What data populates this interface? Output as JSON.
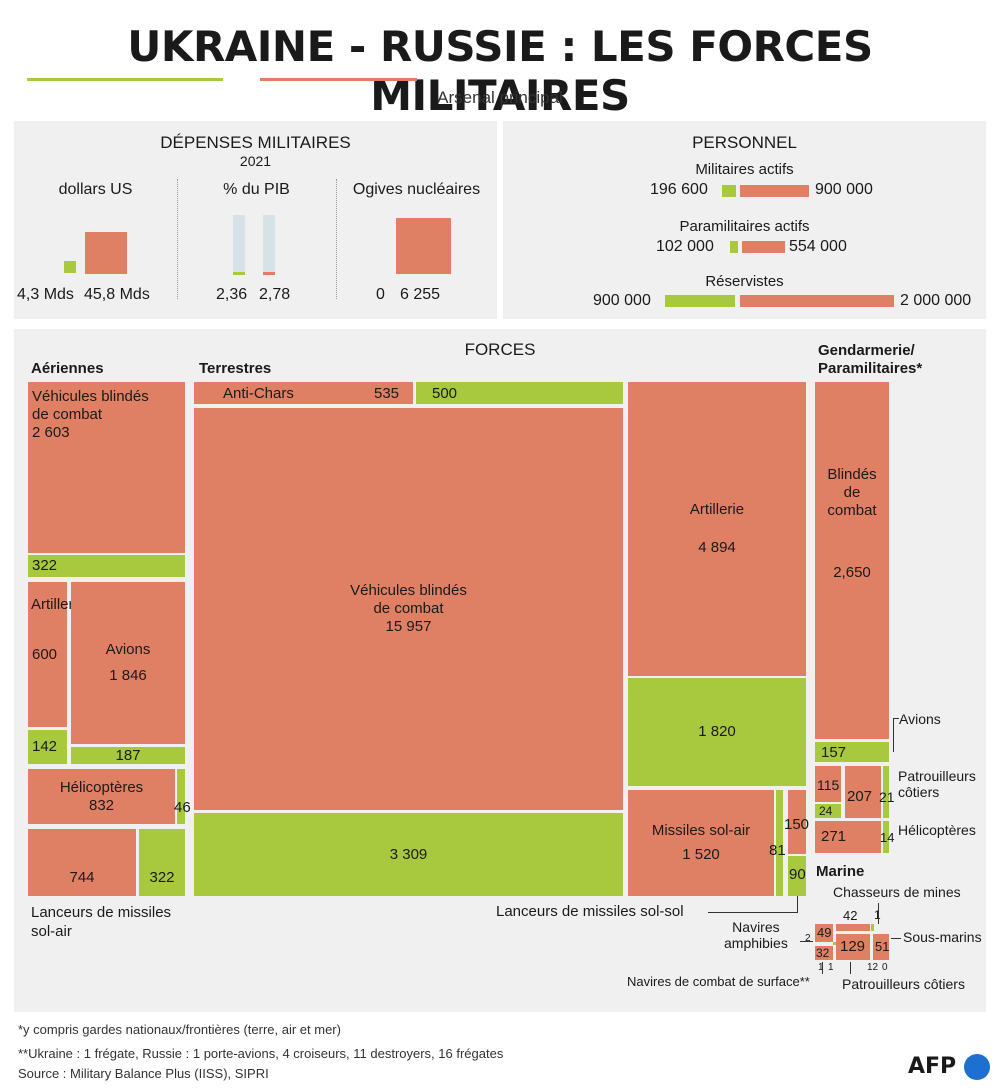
{
  "header": {
    "title_ukraine": "UKRAINE",
    "title_dash": "-",
    "title_russie": "RUSSIE",
    "title_rest": ": LES FORCES MILITAIRES",
    "subtitle": "Arsenal principal"
  },
  "colors": {
    "ukraine": "#a8c93e",
    "russie": "#df8064",
    "panel": "#f0f0f0"
  },
  "spending": {
    "title": "DÉPENSES MILITAIRES",
    "year": "2021",
    "dollars": {
      "label": "dollars US",
      "ukraine": 4.3,
      "russie": 45.8,
      "ukraine_label": "4,3 Mds",
      "russie_label": "45,8 Mds"
    },
    "pib": {
      "label": "% du PIB",
      "ukraine": 2.36,
      "russie": 2.78,
      "ukraine_label": "2,36",
      "russie_label": "2,78"
    },
    "nukes": {
      "label": "Ogives nucléaires",
      "ukraine": 0,
      "russie": 6255,
      "ukraine_label": "0",
      "russie_label": "6 255"
    }
  },
  "personnel": {
    "title": "PERSONNEL",
    "actifs": {
      "label": "Militaires actifs",
      "ukraine": 196600,
      "russie": 900000,
      "ukraine_label": "196 600",
      "russie_label": "900 000"
    },
    "para": {
      "label": "Paramilitaires actifs",
      "ukraine": 102000,
      "russie": 554000,
      "ukraine_label": "102 000",
      "russie_label": "554 000"
    },
    "reserve": {
      "label": "Réservistes",
      "ukraine": 900000,
      "russie": 2000000,
      "ukraine_label": "900 000",
      "russie_label": "2 000 000"
    }
  },
  "forces": {
    "title": "FORCES",
    "sections": {
      "aeriennes": "Aériennes",
      "terrestres": "Terrestres",
      "gendarmerie_1": "Gendarmerie/",
      "gendarmerie_2": "Paramilitaires*",
      "marine": "Marine"
    },
    "labels": {
      "vbc_air_1": "Véhicules blindés",
      "vbc_air_2": "de combat",
      "artillerie": "Artillerie",
      "avions": "Avions",
      "helicopteres": "Hélicoptères",
      "lanceurs_air_1": "Lanceurs de missiles",
      "lanceurs_air_2": "sol-air",
      "anti_chars": "Anti-Chars",
      "vbc_ter_1": "Véhicules blindés",
      "vbc_ter_2": "de combat",
      "artillerie_ter": "Artillerie",
      "missiles_sa": "Missiles sol-air",
      "lanceurs_ss": "Lanceurs de missiles sol-sol",
      "blindes_1": "Blindés",
      "blindes_2": "de",
      "blindes_3": "combat",
      "g_avions": "Avions",
      "g_patrouilleurs_1": "Patrouilleurs",
      "g_patrouilleurs_2": "côtiers",
      "g_helicopteres": "Hélicoptères",
      "m_chasseurs": "Chasseurs de mines",
      "m_navires_amph_1": "Navires",
      "m_navires_amph_2": "amphibies",
      "m_sous_marins": "Sous-marins",
      "m_navires_combat": "Navires de combat de surface**",
      "m_patrouilleurs": "Patrouilleurs côtiers"
    },
    "values": {
      "vbc_air_ru": "2 603",
      "vbc_air_ua": "322",
      "art_ru": "600",
      "art_ua": "142",
      "avions_ru": "1 846",
      "avions_ua": "187",
      "helico_ru": "832",
      "helico_ua": "46",
      "lanceurs_air_ru": "744",
      "lanceurs_air_ua": "322",
      "anti_chars_ru": "535",
      "anti_chars_ua": "500",
      "vbc_ter_ru": "15 957",
      "vbc_ter_ua": "3 309",
      "art_ter_ru": "4 894",
      "art_ter_ua": "1 820",
      "missiles_sa_ru": "1 520",
      "missiles_sa_ua": "81",
      "lanceurs_ss_ru": "150",
      "lanceurs_ss_ua": "90",
      "blindes_ru": "2,650",
      "g_avions_ua": "157",
      "g_pat_ru": "207",
      "g_pat_ua": "21",
      "g_a_ru": "115",
      "g_a_ua": "24",
      "g_helico_ru": "271",
      "g_helico_ua": "14",
      "m_chasseurs_ru": "42",
      "m_chasseurs_ua": "1",
      "m_amph_ru": "49",
      "m_amph_ua": "2",
      "m_combat_ru": "32",
      "m_combat_ua_1": "1",
      "m_combat_ua_2": "1",
      "m_pat_ru": "129",
      "m_pat_ua_1": "12",
      "m_pat_ua_2": "0",
      "m_sous_marins_ru": "51"
    }
  },
  "footer": {
    "note1": "*y compris gardes nationaux/frontières (terre, air et mer)",
    "note2": "**Ukraine : 1 frégate, Russie : 1 porte-avions, 4 croiseurs, 11 destroyers, 16 frégates",
    "source": "Source : Military Balance Plus (IISS), SIPRI",
    "logo": "AFP"
  }
}
